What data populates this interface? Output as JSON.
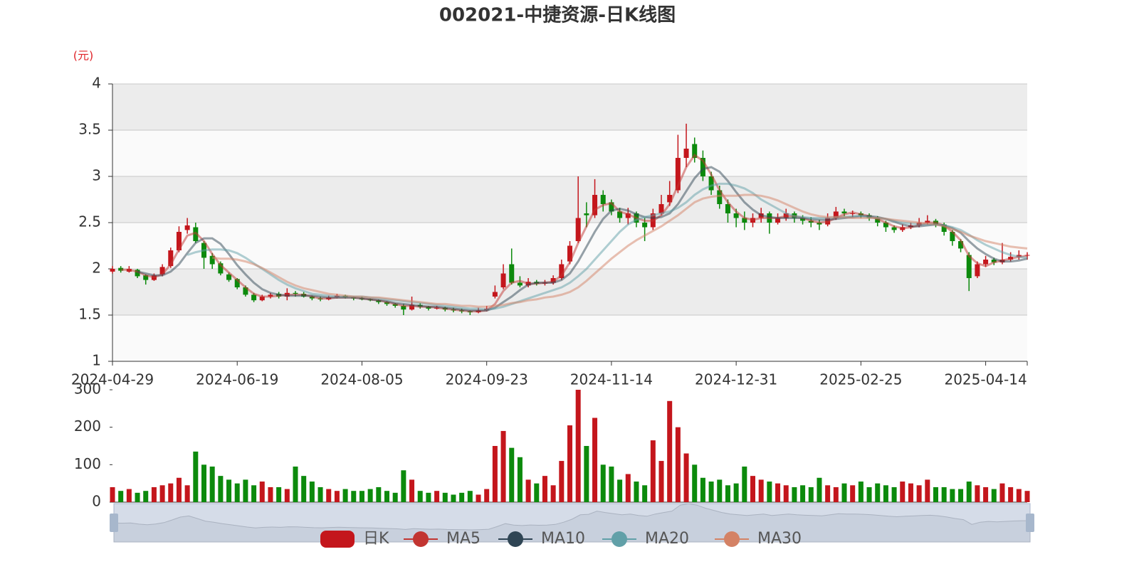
{
  "chart_data": {
    "type": "candlestick",
    "title": "002021-中捷资源-日K线图",
    "y_unit": "(元)",
    "candle_name": "日K",
    "up_color": "#c4161c",
    "down_color": "#0c8a0c",
    "grid": true,
    "ylim": [
      1,
      4
    ],
    "yticks": [
      1,
      1.5,
      2,
      2.5,
      3,
      3.5,
      4
    ],
    "categories": [
      "2024-04-29",
      null,
      null,
      null,
      null,
      null,
      null,
      null,
      null,
      null,
      null,
      null,
      null,
      null,
      null,
      "2024-06-19",
      null,
      null,
      null,
      null,
      null,
      null,
      null,
      null,
      null,
      null,
      null,
      null,
      null,
      null,
      "2024-08-05",
      null,
      null,
      null,
      null,
      null,
      null,
      null,
      null,
      null,
      null,
      null,
      null,
      null,
      null,
      "2024-09-23",
      null,
      null,
      null,
      null,
      null,
      null,
      null,
      null,
      null,
      null,
      null,
      null,
      null,
      null,
      "2024-11-14",
      null,
      null,
      null,
      null,
      null,
      null,
      null,
      null,
      null,
      null,
      null,
      null,
      null,
      null,
      "2024-12-31",
      null,
      null,
      null,
      null,
      null,
      null,
      null,
      null,
      null,
      null,
      null,
      null,
      null,
      null,
      "2025-02-25",
      null,
      null,
      null,
      null,
      null,
      null,
      null,
      null,
      null,
      null,
      null,
      null,
      null,
      null,
      "2025-04-14",
      null,
      null,
      null,
      null,
      null
    ],
    "candles": [
      [
        1.97,
        2.0,
        1.95,
        2.03
      ],
      [
        2.01,
        1.98,
        1.96,
        2.03
      ],
      [
        1.97,
        2.0,
        1.96,
        2.03
      ],
      [
        1.99,
        1.92,
        1.9,
        2.0
      ],
      [
        1.93,
        1.88,
        1.83,
        1.94
      ],
      [
        1.88,
        1.93,
        1.87,
        1.95
      ],
      [
        1.94,
        2.02,
        1.92,
        2.05
      ],
      [
        2.03,
        2.2,
        2.01,
        2.23
      ],
      [
        2.2,
        2.4,
        2.18,
        2.46
      ],
      [
        2.42,
        2.47,
        2.38,
        2.55
      ],
      [
        2.45,
        2.3,
        2.28,
        2.5
      ],
      [
        2.28,
        2.12,
        2.0,
        2.3
      ],
      [
        2.14,
        2.05,
        2.0,
        2.17
      ],
      [
        2.06,
        1.95,
        1.93,
        2.08
      ],
      [
        1.94,
        1.88,
        1.86,
        1.96
      ],
      [
        1.89,
        1.8,
        1.78,
        1.9
      ],
      [
        1.8,
        1.72,
        1.7,
        1.82
      ],
      [
        1.72,
        1.66,
        1.64,
        1.74
      ],
      [
        1.66,
        1.7,
        1.65,
        1.72
      ],
      [
        1.7,
        1.72,
        1.68,
        1.74
      ],
      [
        1.73,
        1.7,
        1.68,
        1.75
      ],
      [
        1.7,
        1.74,
        1.66,
        1.79
      ],
      [
        1.74,
        1.73,
        1.7,
        1.76
      ],
      [
        1.73,
        1.7,
        1.69,
        1.75
      ],
      [
        1.7,
        1.68,
        1.66,
        1.71
      ],
      [
        1.68,
        1.67,
        1.65,
        1.7
      ],
      [
        1.67,
        1.69,
        1.66,
        1.71
      ],
      [
        1.69,
        1.71,
        1.68,
        1.73
      ],
      [
        1.71,
        1.69,
        1.68,
        1.72
      ],
      [
        1.69,
        1.68,
        1.66,
        1.7
      ],
      [
        1.68,
        1.67,
        1.66,
        1.7
      ],
      [
        1.67,
        1.66,
        1.65,
        1.68
      ],
      [
        1.66,
        1.64,
        1.62,
        1.67
      ],
      [
        1.64,
        1.62,
        1.6,
        1.65
      ],
      [
        1.62,
        1.6,
        1.58,
        1.63
      ],
      [
        1.6,
        1.56,
        1.5,
        1.62
      ],
      [
        1.56,
        1.61,
        1.55,
        1.7
      ],
      [
        1.61,
        1.59,
        1.57,
        1.63
      ],
      [
        1.59,
        1.57,
        1.55,
        1.6
      ],
      [
        1.57,
        1.58,
        1.56,
        1.6
      ],
      [
        1.58,
        1.56,
        1.54,
        1.59
      ],
      [
        1.56,
        1.55,
        1.53,
        1.58
      ],
      [
        1.55,
        1.54,
        1.52,
        1.57
      ],
      [
        1.54,
        1.53,
        1.5,
        1.55
      ],
      [
        1.53,
        1.55,
        1.52,
        1.58
      ],
      [
        1.55,
        1.57,
        1.54,
        1.6
      ],
      [
        1.7,
        1.75,
        1.68,
        1.82
      ],
      [
        1.8,
        1.95,
        1.78,
        2.05
      ],
      [
        2.05,
        1.85,
        1.83,
        2.22
      ],
      [
        1.85,
        1.82,
        1.8,
        1.92
      ],
      [
        1.82,
        1.86,
        1.8,
        1.9
      ],
      [
        1.86,
        1.84,
        1.82,
        1.88
      ],
      [
        1.84,
        1.85,
        1.82,
        1.88
      ],
      [
        1.85,
        1.9,
        1.83,
        1.93
      ],
      [
        1.9,
        2.05,
        1.88,
        2.1
      ],
      [
        2.08,
        2.25,
        2.05,
        2.3
      ],
      [
        2.3,
        2.55,
        2.28,
        3.0
      ],
      [
        2.6,
        2.58,
        2.45,
        2.72
      ],
      [
        2.58,
        2.8,
        2.55,
        2.97
      ],
      [
        2.8,
        2.7,
        2.62,
        2.85
      ],
      [
        2.72,
        2.62,
        2.58,
        2.75
      ],
      [
        2.62,
        2.55,
        2.5,
        2.66
      ],
      [
        2.55,
        2.6,
        2.48,
        2.66
      ],
      [
        2.6,
        2.5,
        2.45,
        2.62
      ],
      [
        2.5,
        2.45,
        2.3,
        2.55
      ],
      [
        2.45,
        2.6,
        2.42,
        2.65
      ],
      [
        2.6,
        2.7,
        2.58,
        2.8
      ],
      [
        2.72,
        2.8,
        2.68,
        2.95
      ],
      [
        2.85,
        3.2,
        2.82,
        3.45
      ],
      [
        3.2,
        3.3,
        3.1,
        3.57
      ],
      [
        3.35,
        3.2,
        3.15,
        3.42
      ],
      [
        3.2,
        3.0,
        2.95,
        3.28
      ],
      [
        3.0,
        2.85,
        2.8,
        3.05
      ],
      [
        2.85,
        2.7,
        2.65,
        2.9
      ],
      [
        2.7,
        2.6,
        2.5,
        2.75
      ],
      [
        2.6,
        2.55,
        2.45,
        2.65
      ],
      [
        2.55,
        2.5,
        2.42,
        2.62
      ],
      [
        2.5,
        2.55,
        2.45,
        2.6
      ],
      [
        2.55,
        2.6,
        2.5,
        2.66
      ],
      [
        2.6,
        2.5,
        2.38,
        2.62
      ],
      [
        2.5,
        2.55,
        2.48,
        2.6
      ],
      [
        2.55,
        2.6,
        2.52,
        2.65
      ],
      [
        2.6,
        2.55,
        2.5,
        2.62
      ],
      [
        2.55,
        2.52,
        2.48,
        2.58
      ],
      [
        2.52,
        2.5,
        2.45,
        2.56
      ],
      [
        2.5,
        2.48,
        2.42,
        2.53
      ],
      [
        2.48,
        2.55,
        2.46,
        2.6
      ],
      [
        2.55,
        2.62,
        2.53,
        2.67
      ],
      [
        2.62,
        2.6,
        2.57,
        2.65
      ],
      [
        2.6,
        2.6,
        2.56,
        2.63
      ],
      [
        2.6,
        2.58,
        2.55,
        2.62
      ],
      [
        2.58,
        2.55,
        2.52,
        2.6
      ],
      [
        2.55,
        2.5,
        2.46,
        2.57
      ],
      [
        2.5,
        2.45,
        2.4,
        2.52
      ],
      [
        2.45,
        2.42,
        2.39,
        2.47
      ],
      [
        2.42,
        2.45,
        2.4,
        2.48
      ],
      [
        2.45,
        2.47,
        2.43,
        2.5
      ],
      [
        2.47,
        2.5,
        2.45,
        2.55
      ],
      [
        2.5,
        2.52,
        2.48,
        2.58
      ],
      [
        2.52,
        2.48,
        2.45,
        2.54
      ],
      [
        2.48,
        2.4,
        2.36,
        2.5
      ],
      [
        2.4,
        2.3,
        2.25,
        2.42
      ],
      [
        2.3,
        2.22,
        2.18,
        2.32
      ],
      [
        2.15,
        1.9,
        1.76,
        2.18
      ],
      [
        1.92,
        2.05,
        1.9,
        2.08
      ],
      [
        2.05,
        2.1,
        2.02,
        2.14
      ],
      [
        2.1,
        2.07,
        2.04,
        2.12
      ],
      [
        2.07,
        2.1,
        2.05,
        2.28
      ],
      [
        2.1,
        2.13,
        2.08,
        2.18
      ],
      [
        2.13,
        2.15,
        2.1,
        2.2
      ],
      [
        2.15,
        2.15,
        2.1,
        2.18
      ]
    ],
    "series": [
      {
        "name": "MA5",
        "color": "#c23531",
        "values": [
          null,
          1.99,
          1.99,
          1.97,
          1.93,
          1.91,
          1.94,
          2.05,
          2.21,
          2.36,
          2.39,
          2.3,
          2.16,
          2.04,
          1.96,
          1.88,
          1.8,
          1.73,
          1.7,
          1.7,
          1.71,
          1.72,
          1.72,
          1.72,
          1.7,
          1.68,
          1.68,
          1.69,
          1.69,
          1.69,
          1.68,
          1.67,
          1.66,
          1.64,
          1.62,
          1.6,
          1.6,
          1.59,
          1.59,
          1.58,
          1.57,
          1.56,
          1.55,
          1.54,
          1.54,
          1.55,
          1.62,
          1.76,
          1.85,
          1.87,
          1.84,
          1.84,
          1.85,
          1.86,
          1.93,
          2.07,
          2.28,
          2.46,
          2.64,
          2.69,
          2.71,
          2.62,
          2.59,
          2.55,
          2.52,
          2.52,
          2.58,
          2.7,
          2.9,
          3.1,
          3.23,
          3.17,
          3.02,
          2.85,
          2.72,
          2.62,
          2.55,
          2.53,
          2.55,
          2.55,
          2.55,
          2.57,
          2.57,
          2.55,
          2.52,
          2.5,
          2.51,
          2.55,
          2.59,
          2.61,
          2.59,
          2.57,
          2.54,
          2.5,
          2.46,
          2.44,
          2.45,
          2.47,
          2.5,
          2.5,
          2.47,
          2.4,
          2.31,
          2.14,
          2.06,
          2.03,
          2.07,
          2.09,
          2.11,
          2.13,
          2.14
        ]
      },
      {
        "name": "MA10",
        "color": "#2f4554",
        "values": [
          null,
          null,
          null,
          1.97,
          1.95,
          1.93,
          1.93,
          1.97,
          2.05,
          2.17,
          2.28,
          2.33,
          2.33,
          2.27,
          2.16,
          2.04,
          1.94,
          1.85,
          1.78,
          1.74,
          1.72,
          1.71,
          1.71,
          1.71,
          1.71,
          1.7,
          1.69,
          1.69,
          1.69,
          1.69,
          1.68,
          1.67,
          1.66,
          1.65,
          1.63,
          1.62,
          1.61,
          1.6,
          1.59,
          1.59,
          1.58,
          1.57,
          1.56,
          1.55,
          1.55,
          1.55,
          1.58,
          1.64,
          1.7,
          1.77,
          1.83,
          1.85,
          1.85,
          1.85,
          1.88,
          1.95,
          2.08,
          2.24,
          2.4,
          2.54,
          2.63,
          2.65,
          2.63,
          2.59,
          2.56,
          2.55,
          2.56,
          2.6,
          2.7,
          2.84,
          2.98,
          3.08,
          3.1,
          3.05,
          2.95,
          2.83,
          2.72,
          2.64,
          2.58,
          2.56,
          2.55,
          2.55,
          2.55,
          2.55,
          2.54,
          2.53,
          2.53,
          2.54,
          2.55,
          2.56,
          2.57,
          2.57,
          2.56,
          2.54,
          2.51,
          2.48,
          2.46,
          2.46,
          2.47,
          2.48,
          2.47,
          2.44,
          2.39,
          2.3,
          2.22,
          2.16,
          2.11,
          2.08,
          2.08,
          2.09,
          2.11
        ]
      },
      {
        "name": "MA20",
        "color": "#61a0a8",
        "values": [
          null,
          null,
          null,
          null,
          null,
          null,
          null,
          null,
          null,
          2.15,
          2.18,
          2.2,
          2.21,
          2.21,
          2.2,
          2.17,
          2.12,
          2.06,
          2.0,
          1.94,
          1.88,
          1.83,
          1.79,
          1.76,
          1.73,
          1.72,
          1.71,
          1.7,
          1.7,
          1.7,
          1.7,
          1.69,
          1.68,
          1.67,
          1.66,
          1.65,
          1.64,
          1.63,
          1.62,
          1.61,
          1.6,
          1.59,
          1.58,
          1.57,
          1.57,
          1.56,
          1.57,
          1.59,
          1.62,
          1.65,
          1.68,
          1.71,
          1.74,
          1.77,
          1.8,
          1.85,
          1.92,
          2.0,
          2.1,
          2.2,
          2.3,
          2.4,
          2.48,
          2.53,
          2.56,
          2.58,
          2.6,
          2.62,
          2.66,
          2.72,
          2.8,
          2.86,
          2.9,
          2.92,
          2.92,
          2.9,
          2.87,
          2.82,
          2.75,
          2.7,
          2.65,
          2.6,
          2.57,
          2.56,
          2.55,
          2.55,
          2.55,
          2.56,
          2.56,
          2.57,
          2.57,
          2.56,
          2.55,
          2.54,
          2.52,
          2.5,
          2.49,
          2.48,
          2.48,
          2.48,
          2.47,
          2.45,
          2.42,
          2.37,
          2.31,
          2.26,
          2.22,
          2.18,
          2.15,
          2.13,
          2.12
        ]
      },
      {
        "name": "MA30",
        "color": "#d48265",
        "values": [
          null,
          null,
          null,
          null,
          null,
          null,
          null,
          null,
          null,
          null,
          null,
          null,
          2.12,
          2.11,
          2.11,
          2.1,
          2.08,
          2.05,
          2.01,
          1.96,
          1.91,
          1.86,
          1.82,
          1.79,
          1.77,
          1.75,
          1.73,
          1.72,
          1.71,
          1.7,
          1.7,
          1.69,
          1.69,
          1.68,
          1.67,
          1.66,
          1.65,
          1.64,
          1.63,
          1.62,
          1.62,
          1.61,
          1.6,
          1.6,
          1.59,
          1.59,
          1.6,
          1.61,
          1.63,
          1.64,
          1.66,
          1.67,
          1.69,
          1.7,
          1.72,
          1.75,
          1.8,
          1.87,
          1.95,
          2.03,
          2.11,
          2.18,
          2.25,
          2.31,
          2.36,
          2.41,
          2.46,
          2.52,
          2.58,
          2.65,
          2.72,
          2.76,
          2.78,
          2.79,
          2.79,
          2.79,
          2.8,
          2.8,
          2.79,
          2.77,
          2.74,
          2.7,
          2.66,
          2.62,
          2.59,
          2.57,
          2.56,
          2.56,
          2.56,
          2.55,
          2.55,
          2.55,
          2.55,
          2.54,
          2.53,
          2.52,
          2.51,
          2.5,
          2.49,
          2.48,
          2.46,
          2.43,
          2.4,
          2.36,
          2.33,
          2.3,
          2.28,
          2.26,
          2.24,
          2.23,
          2.22
        ]
      }
    ],
    "volume": {
      "ylim": [
        0,
        300
      ],
      "yticks": [
        0,
        100,
        200,
        300
      ],
      "values": [
        40,
        30,
        35,
        25,
        30,
        40,
        45,
        50,
        65,
        45,
        135,
        100,
        95,
        70,
        60,
        50,
        60,
        45,
        55,
        40,
        40,
        35,
        95,
        70,
        55,
        40,
        35,
        30,
        35,
        30,
        30,
        35,
        40,
        30,
        25,
        85,
        60,
        30,
        25,
        30,
        25,
        20,
        25,
        30,
        20,
        35,
        150,
        190,
        145,
        120,
        60,
        50,
        70,
        45,
        110,
        205,
        300,
        150,
        225,
        100,
        95,
        60,
        75,
        55,
        45,
        165,
        110,
        270,
        200,
        130,
        100,
        65,
        55,
        60,
        45,
        50,
        95,
        70,
        60,
        55,
        50,
        45,
        40,
        45,
        40,
        65,
        45,
        40,
        50,
        45,
        55,
        40,
        50,
        45,
        40,
        55,
        50,
        45,
        60,
        40,
        40,
        35,
        35,
        55,
        45,
        40,
        35,
        50,
        40,
        35,
        30
      ]
    }
  }
}
